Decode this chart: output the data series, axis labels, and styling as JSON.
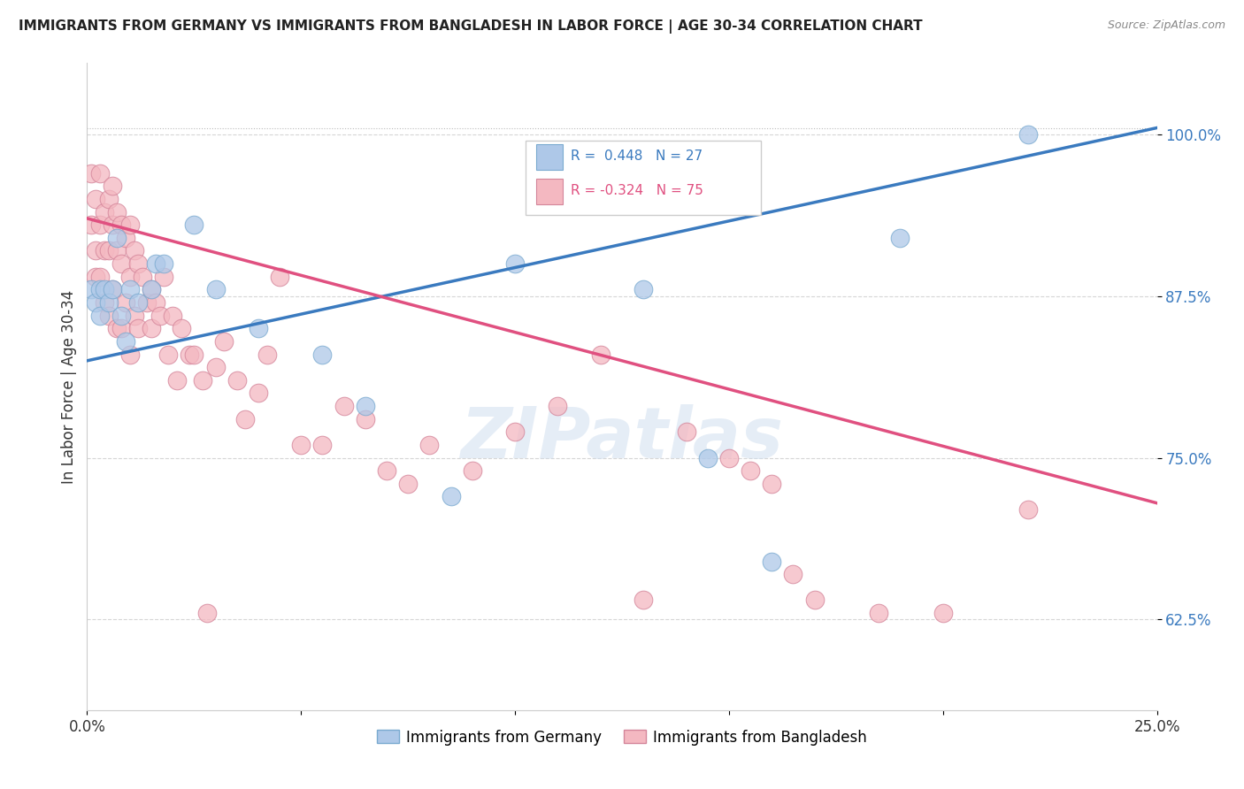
{
  "title": "IMMIGRANTS FROM GERMANY VS IMMIGRANTS FROM BANGLADESH IN LABOR FORCE | AGE 30-34 CORRELATION CHART",
  "source": "Source: ZipAtlas.com",
  "ylabel": "In Labor Force | Age 30-34",
  "r_germany": 0.448,
  "n_germany": 27,
  "r_bangladesh": -0.324,
  "n_bangladesh": 75,
  "xlim": [
    0.0,
    0.25
  ],
  "ylim": [
    0.555,
    1.055
  ],
  "yticks": [
    0.625,
    0.75,
    0.875,
    1.0
  ],
  "ytick_labels": [
    "62.5%",
    "75.0%",
    "87.5%",
    "100.0%"
  ],
  "xticks": [
    0.0,
    0.05,
    0.1,
    0.15,
    0.2,
    0.25
  ],
  "xtick_labels": [
    "0.0%",
    "",
    "",
    "",
    "",
    "25.0%"
  ],
  "color_germany": "#aec8e8",
  "color_bangladesh": "#f4b8c1",
  "color_trend_germany": "#3a7abf",
  "color_trend_bangladesh": "#e05080",
  "color_ytick": "#3a7abf",
  "watermark_text": "ZIPatlas",
  "trend_germany_x0": 0.0,
  "trend_germany_y0": 0.825,
  "trend_germany_x1": 0.25,
  "trend_germany_y1": 1.005,
  "trend_bangladesh_x0": 0.0,
  "trend_bangladesh_y0": 0.935,
  "trend_bangladesh_x1": 0.25,
  "trend_bangladesh_y1": 0.715,
  "germany_x": [
    0.001,
    0.002,
    0.003,
    0.003,
    0.004,
    0.005,
    0.006,
    0.007,
    0.008,
    0.009,
    0.01,
    0.012,
    0.015,
    0.016,
    0.018,
    0.025,
    0.03,
    0.04,
    0.055,
    0.065,
    0.085,
    0.1,
    0.13,
    0.145,
    0.16,
    0.19,
    0.22
  ],
  "germany_y": [
    0.88,
    0.87,
    0.88,
    0.86,
    0.88,
    0.87,
    0.88,
    0.92,
    0.86,
    0.84,
    0.88,
    0.87,
    0.88,
    0.9,
    0.9,
    0.93,
    0.88,
    0.85,
    0.83,
    0.79,
    0.72,
    0.9,
    0.88,
    0.75,
    0.67,
    0.92,
    1.0
  ],
  "bangladesh_x": [
    0.001,
    0.001,
    0.002,
    0.002,
    0.002,
    0.003,
    0.003,
    0.003,
    0.004,
    0.004,
    0.004,
    0.005,
    0.005,
    0.005,
    0.006,
    0.006,
    0.006,
    0.007,
    0.007,
    0.007,
    0.008,
    0.008,
    0.008,
    0.009,
    0.009,
    0.01,
    0.01,
    0.01,
    0.011,
    0.011,
    0.012,
    0.012,
    0.013,
    0.014,
    0.015,
    0.015,
    0.016,
    0.017,
    0.018,
    0.019,
    0.02,
    0.021,
    0.022,
    0.024,
    0.025,
    0.027,
    0.028,
    0.03,
    0.032,
    0.035,
    0.037,
    0.04,
    0.042,
    0.045,
    0.05,
    0.055,
    0.06,
    0.065,
    0.07,
    0.075,
    0.08,
    0.09,
    0.1,
    0.11,
    0.12,
    0.13,
    0.14,
    0.15,
    0.155,
    0.16,
    0.165,
    0.17,
    0.185,
    0.2,
    0.22
  ],
  "bangladesh_y": [
    0.97,
    0.93,
    0.95,
    0.91,
    0.89,
    0.97,
    0.93,
    0.89,
    0.94,
    0.91,
    0.87,
    0.95,
    0.91,
    0.86,
    0.96,
    0.93,
    0.88,
    0.94,
    0.91,
    0.85,
    0.93,
    0.9,
    0.85,
    0.92,
    0.87,
    0.93,
    0.89,
    0.83,
    0.91,
    0.86,
    0.9,
    0.85,
    0.89,
    0.87,
    0.88,
    0.85,
    0.87,
    0.86,
    0.89,
    0.83,
    0.86,
    0.81,
    0.85,
    0.83,
    0.83,
    0.81,
    0.63,
    0.82,
    0.84,
    0.81,
    0.78,
    0.8,
    0.83,
    0.89,
    0.76,
    0.76,
    0.79,
    0.78,
    0.74,
    0.73,
    0.76,
    0.74,
    0.77,
    0.79,
    0.83,
    0.64,
    0.77,
    0.75,
    0.74,
    0.73,
    0.66,
    0.64,
    0.63,
    0.63,
    0.71
  ]
}
